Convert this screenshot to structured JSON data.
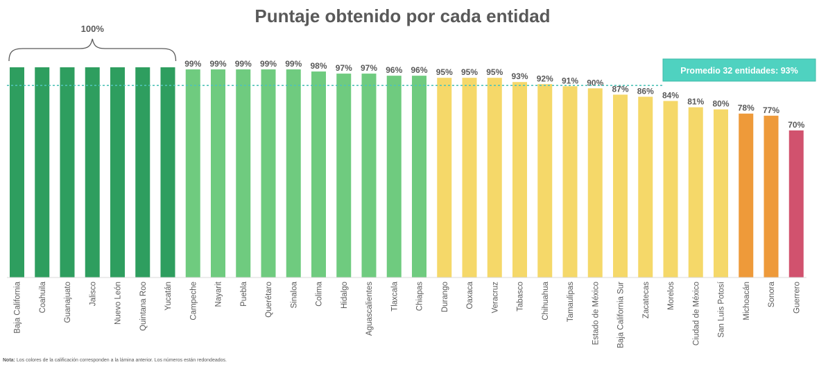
{
  "title": "Puntaje obtenido por cada entidad",
  "note_prefix": "Nota:",
  "note": "Los colores de la calificación corresponden  a la lámina anterior.  Los números están redondeados.",
  "bracket_label": "100%",
  "colors": {
    "dark_green": "#2E9E5F",
    "light_green": "#6FCB7F",
    "yellow": "#F5D869",
    "orange": "#EE9A3A",
    "red": "#D1526E",
    "average_line": "#4FC3B8",
    "average_box": "#4FD2C0",
    "text": "#595959"
  },
  "chart_data": {
    "type": "bar",
    "title": "Puntaje obtenido por cada entidad",
    "categories": [
      "Baja California",
      "Coahuila",
      "Guanajuato",
      "Jalisco",
      "Nuevo León",
      "Quintana Roo",
      "Yucatán",
      "Campeche",
      "Nayarit",
      "Puebla",
      "Querétaro",
      "Sinaloa",
      "Colima",
      "Hidalgo",
      "Aguascalientes",
      "Tlaxcala",
      "Chiapas",
      "Durango",
      "Oaxaca",
      "Veracruz",
      "Tabasco",
      "Chihuahua",
      "Tamaulipas",
      "Estado de México",
      "Baja California Sur",
      "Zacatecas",
      "Morelos",
      "Ciudad de México",
      "San Luis Potosí",
      "Michoacán",
      "Sonora",
      "Guerrero"
    ],
    "values": [
      100,
      100,
      100,
      100,
      100,
      100,
      100,
      99,
      99,
      99,
      99,
      99,
      98,
      97,
      97,
      96,
      96,
      95,
      95,
      95,
      93,
      92,
      91,
      90,
      87,
      86,
      84,
      81,
      80,
      78,
      77,
      70
    ],
    "value_labels": [
      "",
      "",
      "",
      "",
      "",
      "",
      "",
      "99%",
      "99%",
      "99%",
      "99%",
      "99%",
      "98%",
      "97%",
      "97%",
      "96%",
      "96%",
      "95%",
      "95%",
      "95%",
      "93%",
      "92%",
      "91%",
      "90%",
      "87%",
      "86%",
      "84%",
      "81%",
      "80%",
      "78%",
      "77%",
      "70%"
    ],
    "color_groups": [
      "dark_green",
      "dark_green",
      "dark_green",
      "dark_green",
      "dark_green",
      "dark_green",
      "dark_green",
      "light_green",
      "light_green",
      "light_green",
      "light_green",
      "light_green",
      "light_green",
      "light_green",
      "light_green",
      "light_green",
      "light_green",
      "yellow",
      "yellow",
      "yellow",
      "yellow",
      "yellow",
      "yellow",
      "yellow",
      "yellow",
      "yellow",
      "yellow",
      "yellow",
      "yellow",
      "orange",
      "orange",
      "red"
    ],
    "average": {
      "value": 93,
      "label": "Promedio 32 entidades: 93%"
    },
    "ylim": [
      0,
      100
    ],
    "grid": false,
    "legend": "none"
  }
}
